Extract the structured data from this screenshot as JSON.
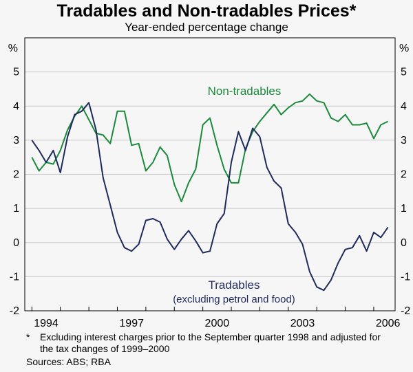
{
  "chart_data": {
    "type": "line",
    "title": "Tradables and Non-tradables Prices*",
    "subtitle": "Year-ended percentage change",
    "unit_left": "%",
    "unit_right": "%",
    "ylim": [
      -2,
      6
    ],
    "yticks": [
      -2,
      -1,
      0,
      1,
      2,
      3,
      4,
      5
    ],
    "xlim": [
      1993.75,
      2006.75
    ],
    "xticks": [
      {
        "value": 1994,
        "label": "1994"
      },
      {
        "value": 1997,
        "label": "1997"
      },
      {
        "value": 2000,
        "label": "2000"
      },
      {
        "value": 2003,
        "label": "2003"
      },
      {
        "value": 2006,
        "label": "2006"
      }
    ],
    "grid": "horizontal",
    "series": [
      {
        "name": "Non-tradables",
        "color": "#1a8a3a",
        "x": [
          1994.0,
          1994.25,
          1994.5,
          1994.75,
          1995.0,
          1995.25,
          1995.5,
          1995.75,
          1996.0,
          1996.25,
          1996.5,
          1996.75,
          1997.0,
          1997.25,
          1997.5,
          1997.75,
          1998.0,
          1998.25,
          1998.5,
          1998.75,
          1999.0,
          1999.25,
          1999.5,
          1999.75,
          2000.0,
          2000.25,
          2000.5,
          2000.75,
          2001.0,
          2001.25,
          2001.5,
          2001.75,
          2002.0,
          2002.25,
          2002.5,
          2002.75,
          2003.0,
          2003.25,
          2003.5,
          2003.75,
          2004.0,
          2004.25,
          2004.5,
          2004.75,
          2005.0,
          2005.25,
          2005.5,
          2005.75,
          2006.0,
          2006.25,
          2006.5
        ],
        "values": [
          2.5,
          2.1,
          2.35,
          2.3,
          2.7,
          3.3,
          3.7,
          4.0,
          3.6,
          3.2,
          3.15,
          2.9,
          3.85,
          3.85,
          2.85,
          2.9,
          2.1,
          2.35,
          2.8,
          2.55,
          1.7,
          1.2,
          1.75,
          2.15,
          3.45,
          3.65,
          2.85,
          2.15,
          1.75,
          1.75,
          2.75,
          3.25,
          3.55,
          3.8,
          4.05,
          3.75,
          3.95,
          4.1,
          4.15,
          4.35,
          4.15,
          4.1,
          3.65,
          3.55,
          3.75,
          3.45,
          3.45,
          3.5,
          3.05,
          3.45,
          3.55
        ]
      },
      {
        "name": "Tradables",
        "color": "#1f2a5c",
        "x": [
          1994.0,
          1994.25,
          1994.5,
          1994.75,
          1995.0,
          1995.25,
          1995.5,
          1995.75,
          1996.0,
          1996.25,
          1996.5,
          1996.75,
          1997.0,
          1997.25,
          1997.5,
          1997.75,
          1998.0,
          1998.25,
          1998.5,
          1998.75,
          1999.0,
          1999.25,
          1999.5,
          1999.75,
          2000.0,
          2000.25,
          2000.5,
          2000.75,
          2001.0,
          2001.25,
          2001.5,
          2001.75,
          2002.0,
          2002.25,
          2002.5,
          2002.75,
          2003.0,
          2003.25,
          2003.5,
          2003.75,
          2004.0,
          2004.25,
          2004.5,
          2004.75,
          2005.0,
          2005.25,
          2005.5,
          2005.75,
          2006.0,
          2006.25,
          2006.5
        ],
        "values": [
          3.0,
          2.7,
          2.35,
          2.7,
          2.05,
          3.1,
          3.75,
          3.85,
          4.1,
          3.3,
          1.9,
          1.1,
          0.3,
          -0.15,
          -0.25,
          -0.05,
          0.65,
          0.7,
          0.6,
          0.1,
          -0.2,
          0.1,
          0.35,
          0.05,
          -0.3,
          -0.25,
          0.55,
          0.85,
          2.35,
          3.25,
          2.7,
          3.35,
          3.1,
          2.2,
          1.8,
          1.6,
          0.55,
          0.3,
          -0.05,
          -0.85,
          -1.3,
          -1.4,
          -1.1,
          -0.6,
          -0.2,
          -0.15,
          0.2,
          -0.25,
          0.3,
          0.15,
          0.45
        ]
      }
    ],
    "annotations": [
      {
        "text": "Non-tradables",
        "color": "#1a8a3a"
      },
      {
        "text": "Tradables",
        "color": "#1f2a5c"
      },
      {
        "text": "(excluding petrol and food)",
        "color": "#1f2a5c"
      }
    ]
  },
  "footnote": {
    "marker": "*",
    "text": "Excluding interest charges prior to the September quarter 1998 and adjusted for the tax changes of 1999–2000"
  },
  "sources": "Sources: ABS; RBA"
}
